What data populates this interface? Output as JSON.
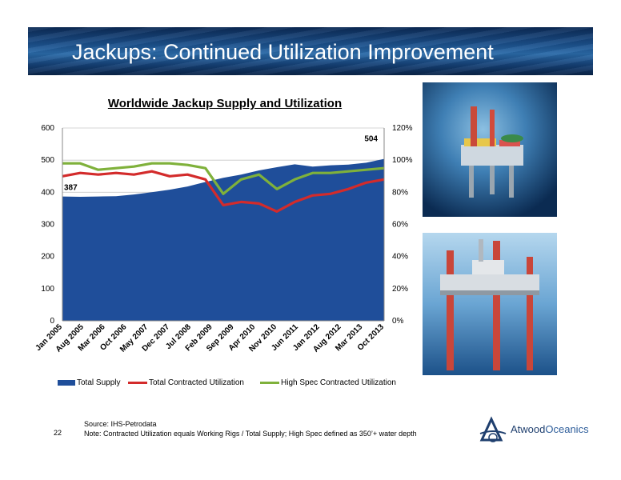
{
  "header": {
    "title": "Jackups: Continued Utilization Improvement"
  },
  "chart_data": {
    "type": "area+line",
    "title": "Worldwide Jackup Supply and Utilization",
    "y_left": {
      "min": 0,
      "max": 600,
      "ticks": [
        "0",
        "100",
        "200",
        "300",
        "400",
        "500",
        "600"
      ]
    },
    "y_right": {
      "min": 0,
      "max": 1.2,
      "ticks": [
        "0%",
        "20%",
        "40%",
        "60%",
        "80%",
        "100%",
        "120%"
      ]
    },
    "x_labels": [
      "Jan 2005",
      "Aug 2005",
      "Mar 2006",
      "Oct 2006",
      "May 2007",
      "Dec 2007",
      "Jul 2008",
      "Feb 2009",
      "Sep 2009",
      "Apr 2010",
      "Nov 2010",
      "Jun 2011",
      "Jan 2012",
      "Aug 2012",
      "Mar 2013",
      "Oct 2013"
    ],
    "annotations": [
      {
        "label": "387"
      },
      {
        "label": "504"
      }
    ],
    "legend_position": "bottom",
    "series": [
      {
        "name": "Total Supply",
        "axis": "left",
        "kind": "area",
        "color": "#1f4e9a",
        "values": [
          387,
          386,
          387,
          388,
          393,
          400,
          408,
          418,
          432,
          445,
          455,
          468,
          478,
          487,
          480,
          484,
          486,
          492,
          504
        ]
      },
      {
        "name": "Total Contracted Utilization",
        "axis": "right",
        "kind": "line",
        "color": "#d32b2b",
        "values": [
          0.9,
          0.92,
          0.91,
          0.92,
          0.91,
          0.93,
          0.9,
          0.91,
          0.88,
          0.72,
          0.74,
          0.73,
          0.68,
          0.74,
          0.78,
          0.79,
          0.82,
          0.86,
          0.88
        ]
      },
      {
        "name": "High Spec Contracted Utilization",
        "axis": "right",
        "kind": "line",
        "color": "#7fb13b",
        "values": [
          0.98,
          0.98,
          0.94,
          0.95,
          0.96,
          0.98,
          0.98,
          0.97,
          0.95,
          0.79,
          0.88,
          0.91,
          0.82,
          0.88,
          0.92,
          0.92,
          0.93,
          0.94,
          0.95
        ]
      }
    ]
  },
  "footer": {
    "source": "Source: IHS-Petrodata",
    "note": "Note: Contracted Utilization equals Working Rigs / Total Supply; High Spec defined as 350’+ water depth",
    "page": "22"
  },
  "logo": {
    "text_a": "Atwood",
    "text_b": "Oceanics"
  }
}
